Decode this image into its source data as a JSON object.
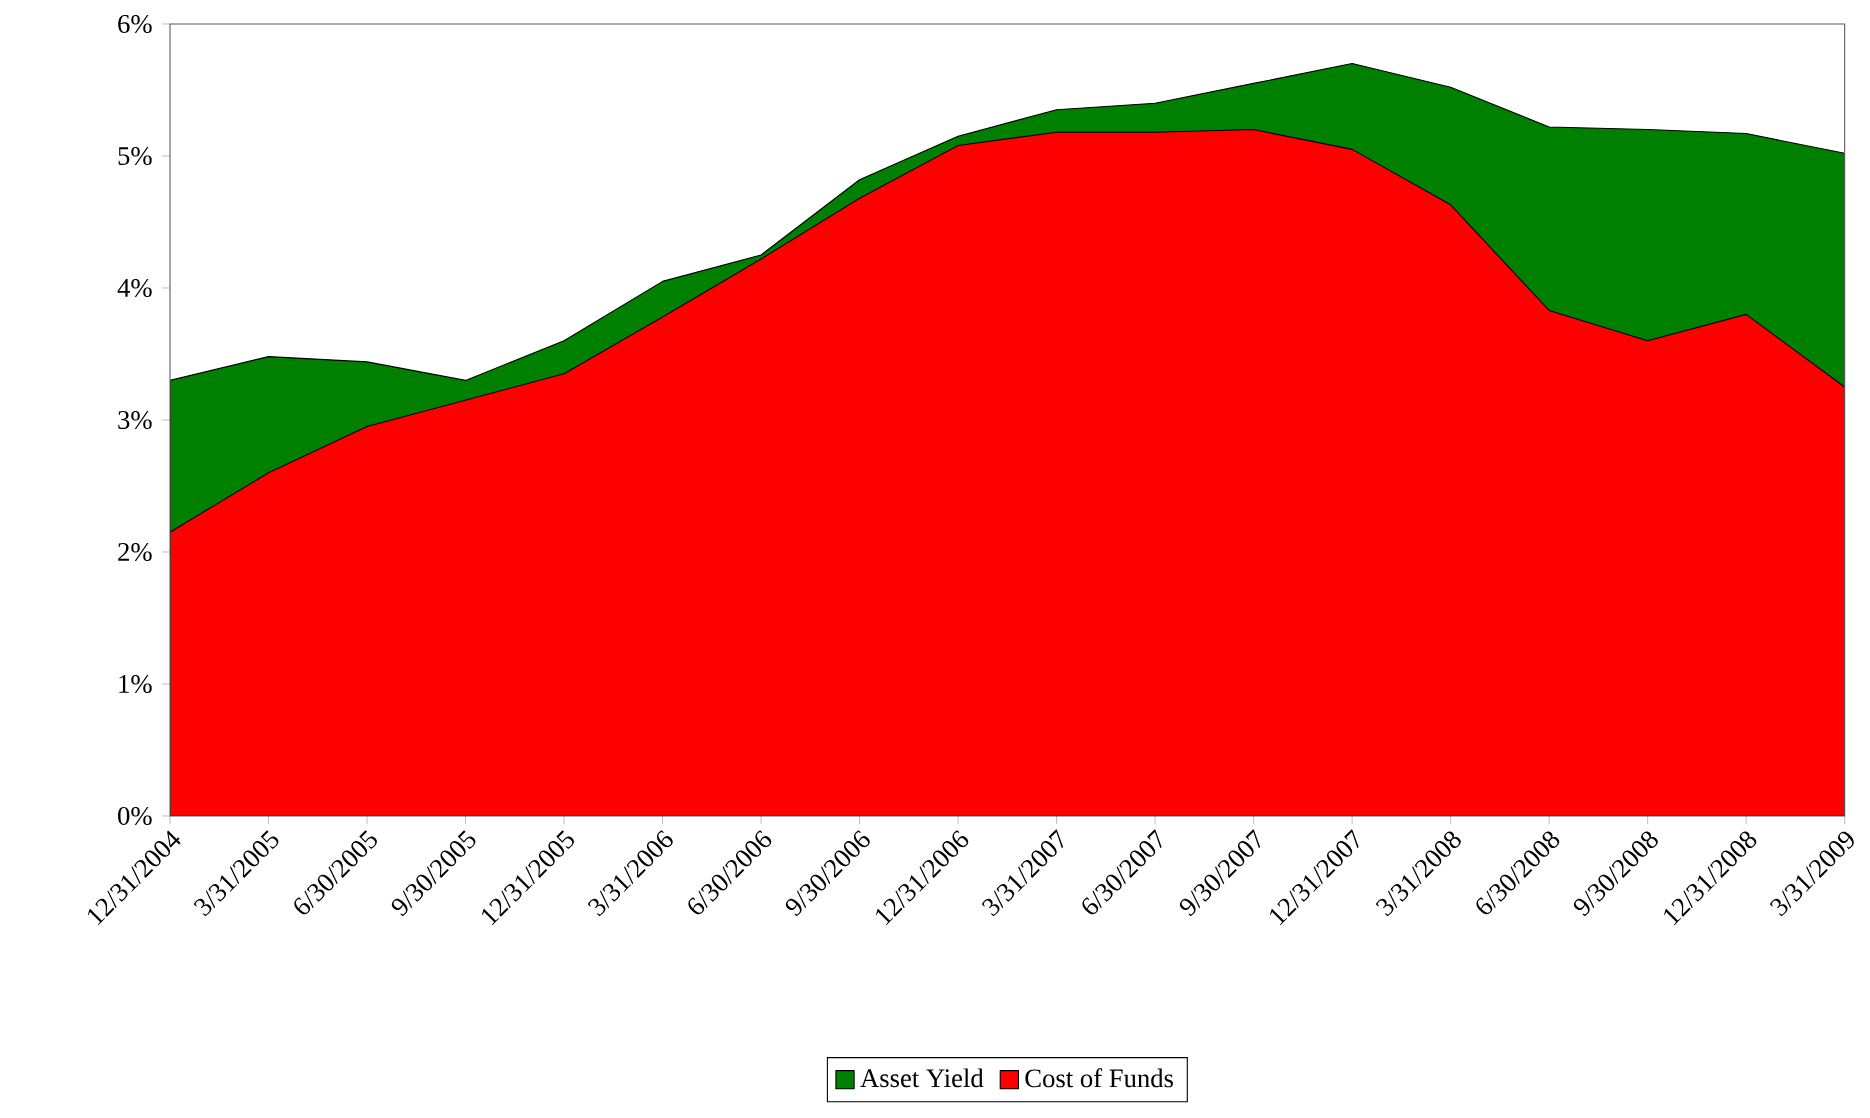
{
  "chart_data": {
    "type": "area",
    "categories": [
      "12/31/2004",
      "3/31/2005",
      "6/30/2005",
      "9/30/2005",
      "12/31/2005",
      "3/31/2006",
      "6/30/2006",
      "9/30/2006",
      "12/31/2006",
      "3/31/2007",
      "6/30/2007",
      "9/30/2007",
      "12/31/2007",
      "3/31/2008",
      "6/30/2008",
      "9/30/2008",
      "12/31/2008",
      "3/31/2009"
    ],
    "series": [
      {
        "name": "Asset Yield",
        "color": "#008000",
        "values": [
          3.3,
          3.48,
          3.44,
          3.3,
          3.6,
          4.05,
          4.25,
          4.82,
          5.15,
          5.35,
          5.4,
          5.55,
          5.7,
          5.52,
          5.22,
          5.2,
          5.17,
          5.02
        ]
      },
      {
        "name": "Cost of Funds",
        "color": "#ff0000",
        "values": [
          2.15,
          2.6,
          2.95,
          3.15,
          3.35,
          3.78,
          4.22,
          4.68,
          5.08,
          5.18,
          5.18,
          5.2,
          5.05,
          4.63,
          3.83,
          3.6,
          3.8,
          3.25
        ]
      }
    ],
    "ylim": [
      0,
      6
    ],
    "yticks": [
      {
        "value": 0,
        "label": "0%"
      },
      {
        "value": 1,
        "label": "1%"
      },
      {
        "value": 2,
        "label": "2%"
      },
      {
        "value": 3,
        "label": "3%"
      },
      {
        "value": 4,
        "label": "4%"
      },
      {
        "value": 5,
        "label": "5%"
      },
      {
        "value": 6,
        "label": "6%"
      }
    ],
    "grid": false,
    "legend": "bottom"
  }
}
